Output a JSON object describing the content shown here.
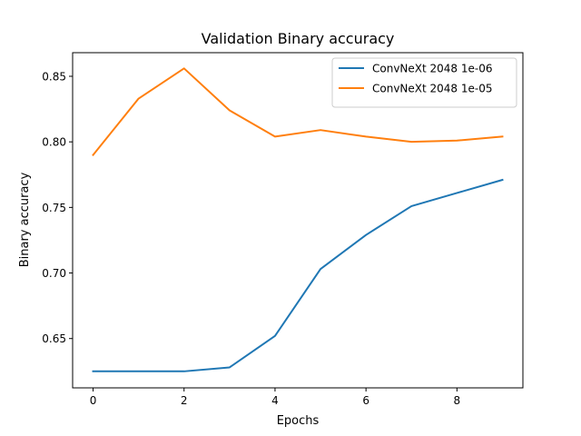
{
  "chart_data": {
    "type": "line",
    "title": "Validation Binary accuracy",
    "xlabel": "Epochs",
    "ylabel": "Binary accuracy",
    "x": [
      0,
      1,
      2,
      3,
      4,
      5,
      6,
      7,
      8,
      9
    ],
    "xlim": [
      -0.45,
      9.45
    ],
    "ylim": [
      0.6124,
      0.868
    ],
    "xticks": [
      0,
      2,
      4,
      6,
      8
    ],
    "yticks": [
      0.65,
      0.7,
      0.75,
      0.8,
      0.85
    ],
    "ytick_labels": [
      "0.65",
      "0.70",
      "0.75",
      "0.80",
      "0.85"
    ],
    "grid": false,
    "legend_position": "top-right",
    "series": [
      {
        "name": "ConvNeXt 2048 1e-06",
        "color": "#1f77b4",
        "values": [
          0.625,
          0.625,
          0.625,
          0.628,
          0.652,
          0.703,
          0.729,
          0.751,
          0.761,
          0.771
        ]
      },
      {
        "name": "ConvNeXt 2048 1e-05",
        "color": "#ff7f0e",
        "values": [
          0.79,
          0.833,
          0.856,
          0.824,
          0.804,
          0.809,
          0.804,
          0.8,
          0.801,
          0.804
        ]
      }
    ]
  }
}
